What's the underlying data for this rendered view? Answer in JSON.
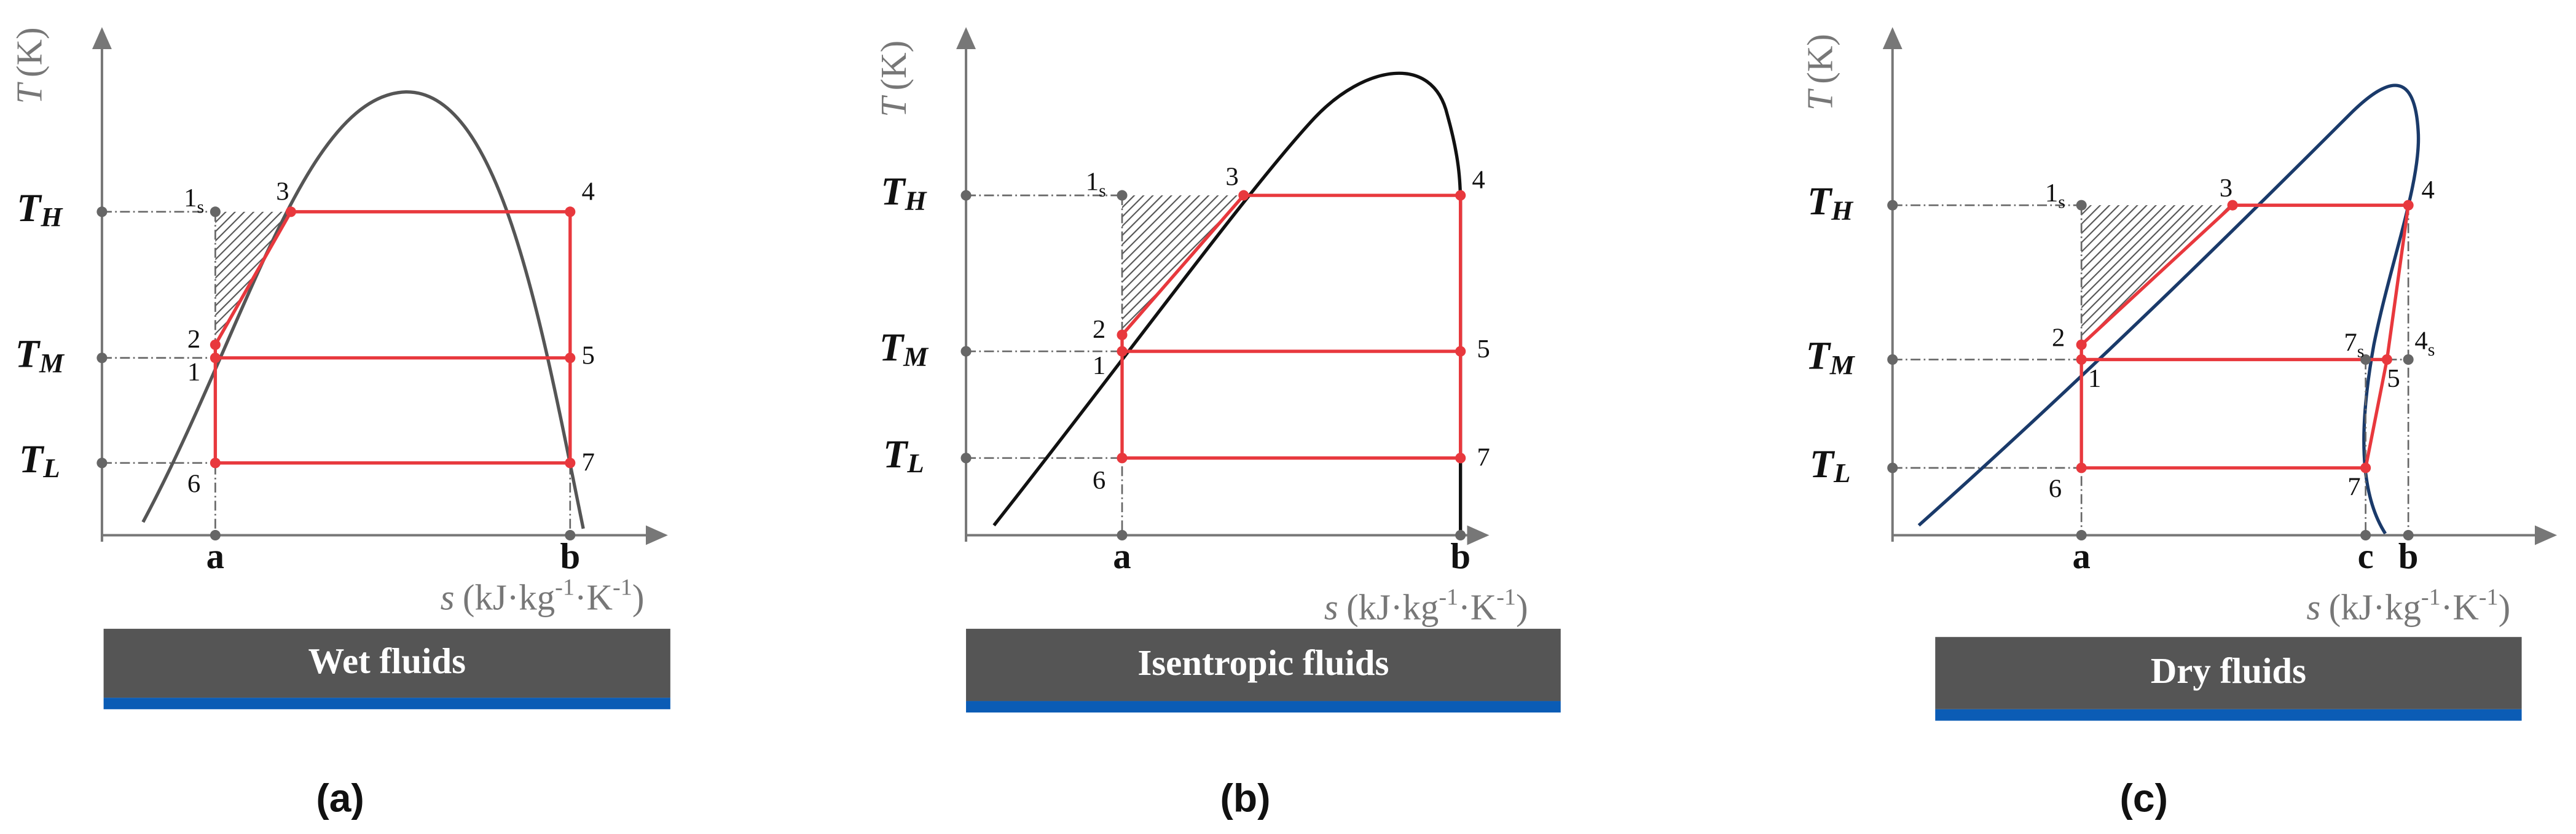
{
  "panels": [
    {
      "y_label": {
        "symbol": "T",
        "unit": "(K)"
      },
      "x_label": {
        "symbol": "s",
        "parts": [
          "(kJ·kg",
          "-1",
          "·K",
          "-1",
          ")"
        ]
      },
      "levels": [
        {
          "main": "T",
          "sub": "H"
        },
        {
          "main": "T",
          "sub": "M"
        },
        {
          "main": "T",
          "sub": "L"
        }
      ],
      "x_ticks": [
        "a",
        "b"
      ],
      "points": [
        {
          "main": "1",
          "sub": "s"
        },
        {
          "main": "3"
        },
        {
          "main": "4"
        },
        {
          "main": "2"
        },
        {
          "main": "1"
        },
        {
          "main": "5"
        },
        {
          "main": "7"
        },
        {
          "main": "6"
        }
      ],
      "banner": "Wet fluids",
      "caption": "(a)"
    },
    {
      "y_label": {
        "symbol": "T",
        "unit": "(K)"
      },
      "x_label": {
        "symbol": "s",
        "parts": [
          "(kJ·kg",
          "-1",
          "·K",
          "-1",
          ")"
        ]
      },
      "levels": [
        {
          "main": "T",
          "sub": "H"
        },
        {
          "main": "T",
          "sub": "M"
        },
        {
          "main": "T",
          "sub": "L"
        }
      ],
      "x_ticks": [
        "a",
        "b"
      ],
      "points": [
        {
          "main": "1",
          "sub": "s"
        },
        {
          "main": "3"
        },
        {
          "main": "4"
        },
        {
          "main": "2"
        },
        {
          "main": "1"
        },
        {
          "main": "5"
        },
        {
          "main": "7"
        },
        {
          "main": "6"
        }
      ],
      "banner": "Isentropic fluids",
      "caption": "(b)"
    },
    {
      "y_label": {
        "symbol": "T",
        "unit": "(K)"
      },
      "x_label": {
        "symbol": "s",
        "parts": [
          "(kJ·kg",
          "-1",
          "·K",
          "-1",
          ")"
        ]
      },
      "levels": [
        {
          "main": "T",
          "sub": "H"
        },
        {
          "main": "T",
          "sub": "M"
        },
        {
          "main": "T",
          "sub": "L"
        }
      ],
      "x_ticks": [
        "a",
        "c",
        "b"
      ],
      "points": [
        {
          "main": "1",
          "sub": "s"
        },
        {
          "main": "3"
        },
        {
          "main": "4"
        },
        {
          "main": "2"
        },
        {
          "main": "1"
        },
        {
          "main": "7",
          "sub": "s"
        },
        {
          "main": "4",
          "sub": "s"
        },
        {
          "main": "5"
        },
        {
          "main": "7"
        },
        {
          "main": "6"
        }
      ],
      "banner": "Dry fluids",
      "caption": "(c)"
    }
  ]
}
